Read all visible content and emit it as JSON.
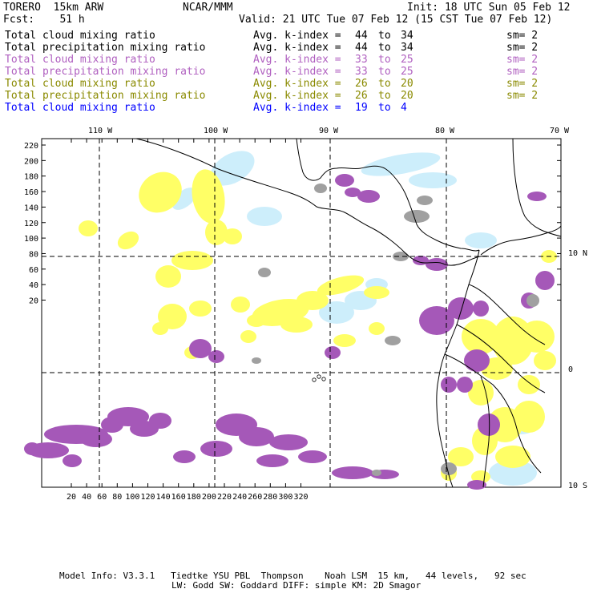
{
  "header": {
    "model": "TORERO  15km ARW",
    "org": "NCAR/MMM",
    "init": "Init: 18 UTC Sun 05 Feb 12",
    "fcst": "Fcst:    51 h",
    "valid": "Valid: 21 UTC Tue 07 Feb 12 (15 CST Tue 07 Feb 12)"
  },
  "legend": [
    {
      "field": "Total cloud mixing ratio",
      "index": "Avg. k-index =",
      "hi": "44",
      "to": "to",
      "lo": "34",
      "sm": "sm= 2",
      "color": "#000000"
    },
    {
      "field": "Total precipitation mixing ratio",
      "index": "Avg. k-index =",
      "hi": "44",
      "to": "to",
      "lo": "34",
      "sm": "sm= 2",
      "color": "#000000"
    },
    {
      "field": "Total cloud mixing ratio",
      "index": "Avg. k-index =",
      "hi": "33",
      "to": "to",
      "lo": "25",
      "sm": "sm= 2",
      "color": "#b060c0"
    },
    {
      "field": "Total precipitation mixing ratio",
      "index": "Avg. k-index =",
      "hi": "33",
      "to": "to",
      "lo": "25",
      "sm": "sm= 2",
      "color": "#b060c0"
    },
    {
      "field": "Total cloud mixing ratio",
      "index": "Avg. k-index =",
      "hi": "26",
      "to": "to",
      "lo": "20",
      "sm": "sm= 2",
      "color": "#8a8a00"
    },
    {
      "field": "Total precipitation mixing ratio",
      "index": "Avg. k-index =",
      "hi": "26",
      "to": "to",
      "lo": "20",
      "sm": "sm= 2",
      "color": "#8a8a00"
    },
    {
      "field": "Total cloud mixing ratio",
      "index": "Avg. k-index =",
      "hi": "19",
      "to": "to",
      "lo": "4",
      "sm": "",
      "color": "#0000ff"
    }
  ],
  "map": {
    "lon_labels": [
      "110 W",
      "100 W",
      "90 W",
      "80 W",
      "70 W"
    ],
    "lat_labels": [
      "10 N",
      "0",
      "10 S"
    ],
    "y_ticks": [
      "220",
      "200",
      "180",
      "160",
      "140",
      "120",
      "100",
      "80",
      "60",
      "40",
      "20"
    ],
    "x_ticks": [
      "20",
      "40",
      "60",
      "80",
      "100",
      "120",
      "140",
      "160",
      "180",
      "200",
      "220",
      "240",
      "260",
      "280",
      "300",
      "320"
    ],
    "colors": {
      "purple": "#a558b8",
      "yellow": "#ffff66",
      "lightblue": "#cdeefb",
      "gray": "#a0a0a0",
      "coast": "#000000",
      "grid": "#000000"
    }
  },
  "footer": {
    "line1": "Model Info: V3.3.1   Tiedtke YSU PBL  Thompson    Noah LSM  15 km,   44 levels,   92 sec",
    "line2": "LW: Godd SW: Goddard DIFF: simple KM: 2D Smagor"
  }
}
